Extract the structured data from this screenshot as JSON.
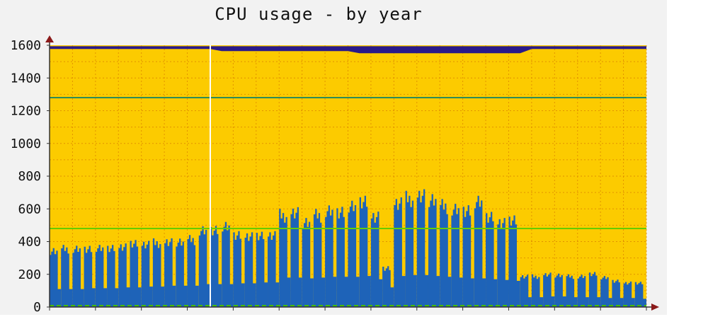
{
  "chart_data": {
    "type": "area",
    "title": "CPU usage - by year",
    "ylim": [
      0,
      1600
    ],
    "yticks": [
      0,
      200,
      400,
      600,
      800,
      1000,
      1200,
      1400,
      1600
    ],
    "x_weeks": 52,
    "capacity": 1590,
    "reference_lines": [
      {
        "value": 1280,
        "color": "#2e8b57"
      },
      {
        "value": 480,
        "color": "#66cc00"
      }
    ],
    "vertical_marker_week": 14,
    "peak_max": [
      370,
      380,
      380,
      385,
      380,
      385,
      400,
      410,
      410,
      420,
      420,
      430,
      440,
      500,
      510,
      520,
      470,
      470,
      460,
      470,
      600,
      610,
      560,
      600,
      630,
      630,
      650,
      690,
      600,
      250,
      680,
      710,
      720,
      710,
      660,
      640,
      640,
      680,
      590,
      560,
      560,
      200,
      200,
      210,
      210,
      200,
      200,
      220,
      190,
      170,
      160,
      155
    ],
    "base": [
      110,
      110,
      110,
      115,
      115,
      115,
      120,
      120,
      125,
      125,
      130,
      130,
      130,
      140,
      140,
      140,
      145,
      145,
      150,
      150,
      180,
      180,
      175,
      180,
      185,
      185,
      185,
      190,
      170,
      120,
      190,
      195,
      195,
      190,
      185,
      180,
      175,
      175,
      170,
      165,
      160,
      60,
      60,
      65,
      65,
      60,
      60,
      60,
      55,
      55,
      55,
      50
    ],
    "colors": {
      "background": "#fccb00",
      "usage": "#1e63b8",
      "top_band": "#2a1a8a",
      "grid": "#d98000",
      "axis_arrow": "#8b1a1a",
      "marker": "#ffffff"
    }
  }
}
